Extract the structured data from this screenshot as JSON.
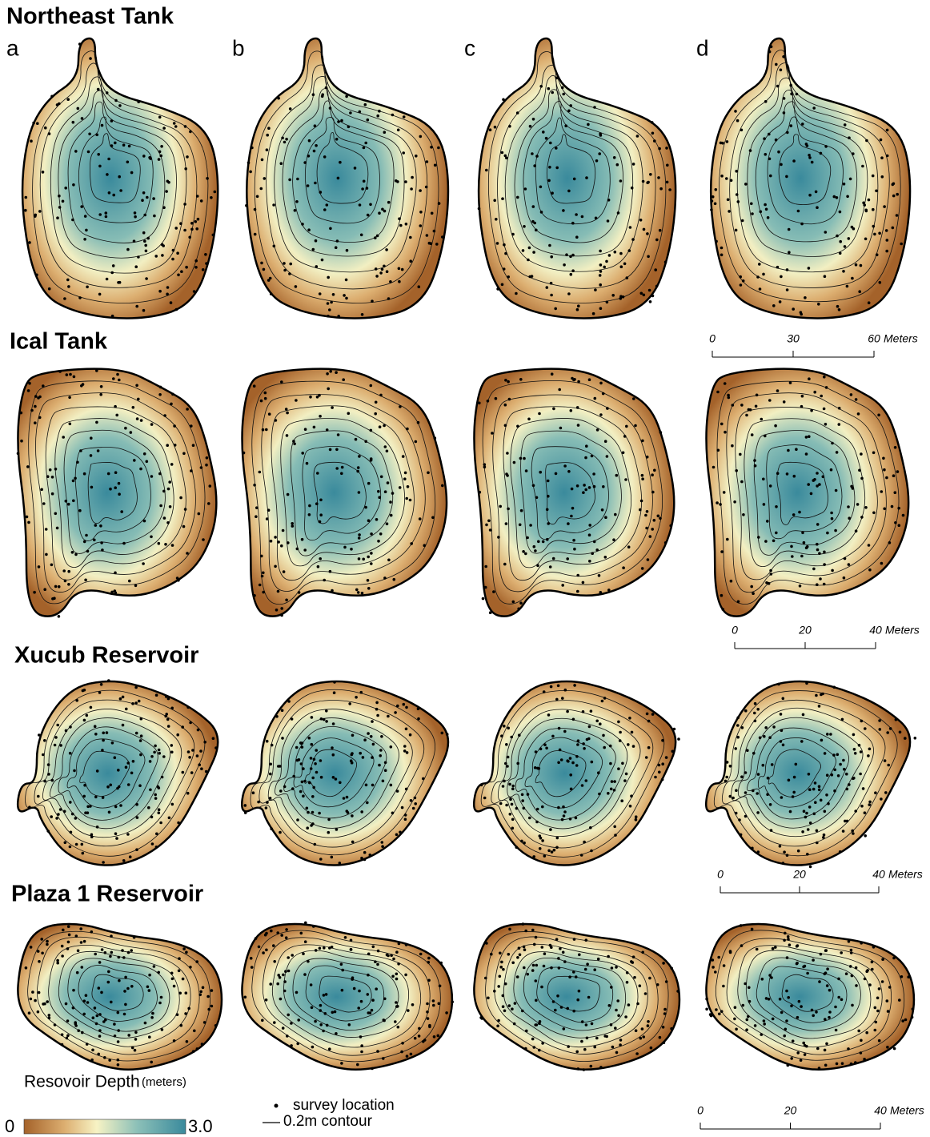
{
  "sections": [
    {
      "title": "Northeast Tank",
      "scale_bar": {
        "ticks": [
          "0",
          "30",
          "60"
        ],
        "unit": "Meters"
      }
    },
    {
      "title": "Ical Tank",
      "scale_bar": {
        "ticks": [
          "0",
          "20",
          "40"
        ],
        "unit": "Meters"
      }
    },
    {
      "title": "Xucub Reservoir",
      "scale_bar": {
        "ticks": [
          "0",
          "20",
          "40"
        ],
        "unit": "Meters"
      }
    },
    {
      "title": "Plaza 1 Reservoir",
      "scale_bar": {
        "ticks": [
          "0",
          "20",
          "40"
        ],
        "unit": "Meters"
      }
    }
  ],
  "panel_letters": [
    "a",
    "b",
    "c",
    "d"
  ],
  "legend": {
    "title": "Resovoir Depth",
    "units": "(meters)",
    "min": "0",
    "max": "3.0",
    "survey": "survey location",
    "contour": "0.2m contour"
  }
}
